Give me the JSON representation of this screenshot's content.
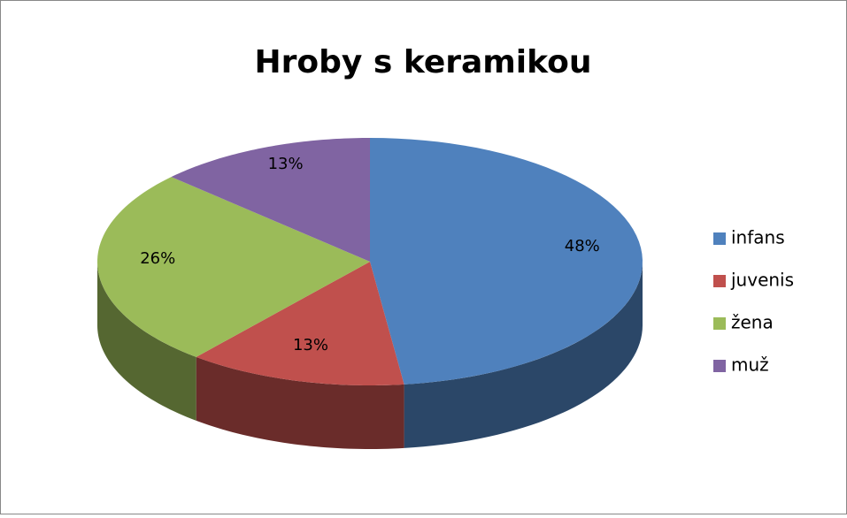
{
  "chart_data": {
    "type": "pie",
    "title": "Hroby s keramikou",
    "categories": [
      "infans",
      "juvenis",
      "žena",
      "muž"
    ],
    "values": [
      48,
      13,
      26,
      13
    ],
    "value_labels": [
      "48%",
      "13%",
      "26%",
      "13%"
    ],
    "colors": [
      "#4f81bd",
      "#c0504d",
      "#9bbb59",
      "#8064a2"
    ],
    "legend": "right"
  }
}
